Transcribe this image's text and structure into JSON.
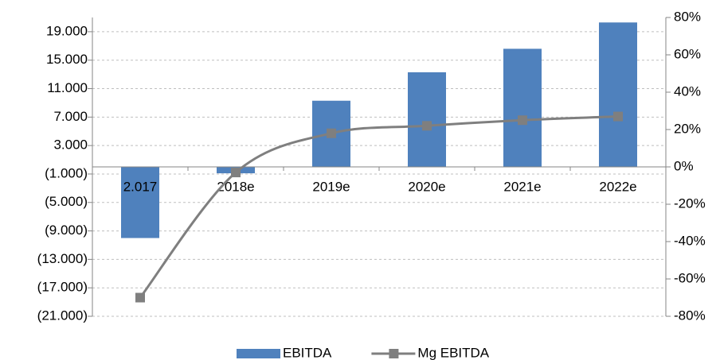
{
  "chart_data": {
    "type": "bar_line",
    "categories": [
      "2.017",
      "2018e",
      "2019e",
      "2020e",
      "2021e",
      "2022e"
    ],
    "series": [
      {
        "name": "EBITDA",
        "color": "#4f81bd",
        "type": "bar",
        "values": [
          -10000,
          -900,
          9300,
          13300,
          16600,
          20300
        ]
      },
      {
        "name": "Mg EBITDA",
        "color": "#7f7f7f",
        "type": "line",
        "axis": "y2",
        "values": [
          -70,
          -3,
          18,
          22,
          25,
          27
        ]
      }
    ],
    "ylim": [
      -21000,
      21000
    ],
    "yticks": [
      {
        "value": 19000,
        "label": "19.000"
      },
      {
        "value": 15000,
        "label": "15.000"
      },
      {
        "value": 11000,
        "label": "11.000"
      },
      {
        "value": 7000,
        "label": "7.000"
      },
      {
        "value": 3000,
        "label": "3.000"
      },
      {
        "value": -1000,
        "label": "(1.000)"
      },
      {
        "value": -5000,
        "label": "(5.000)"
      },
      {
        "value": -9000,
        "label": "(9.000)"
      },
      {
        "value": -13000,
        "label": "(13.000)"
      },
      {
        "value": -17000,
        "label": "(17.000)"
      },
      {
        "value": -21000,
        "label": "(21.000)"
      }
    ],
    "y2lim": [
      -80,
      80
    ],
    "y2ticks": [
      {
        "value": 80,
        "label": "80%"
      },
      {
        "value": 60,
        "label": "60%"
      },
      {
        "value": 40,
        "label": "40%"
      },
      {
        "value": 20,
        "label": "20%"
      },
      {
        "value": 0,
        "label": "0%"
      },
      {
        "value": -20,
        "label": "-20%"
      },
      {
        "value": -40,
        "label": "-40%"
      },
      {
        "value": -60,
        "label": "-60%"
      },
      {
        "value": -80,
        "label": "-80%"
      }
    ],
    "grid": true,
    "legend": "bottom"
  }
}
